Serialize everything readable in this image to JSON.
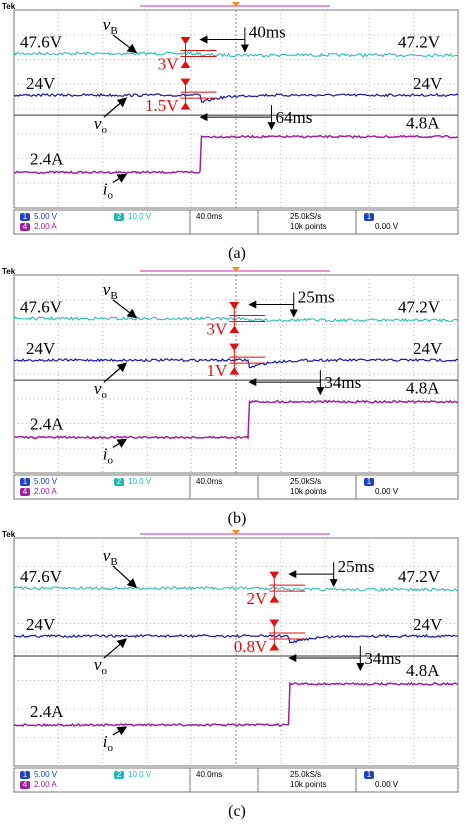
{
  "panels": [
    {
      "brand": "Tek",
      "vb_left": "47.6V",
      "vb_right": "47.2V",
      "vo_left": "24V",
      "vo_right": "24V",
      "io_left": "2.4A",
      "io_right": "4.8A",
      "vb_name": "v",
      "vb_sub": "B",
      "vo_name": "v",
      "vo_sub": "o",
      "io_name": "i",
      "io_sub": "o",
      "time_top": "40ms",
      "time_bottom": "64ms",
      "dv_top": "3V",
      "dv_bottom": "1.5V",
      "status": {
        "ch1_id": "1",
        "ch1": "5.00 V",
        "ch2_id": "2",
        "ch2": "10.0 V",
        "ch4_id": "4",
        "ch4": "2.00 A",
        "timebase": "40.0ms",
        "rate": "25.0kS/s",
        "points": "10k points",
        "trig_id": "1",
        "trig": "0.00 V"
      },
      "caption": "(a)"
    },
    {
      "brand": "Tek",
      "vb_left": "47.6V",
      "vb_right": "47.2V",
      "vo_left": "24V",
      "vo_right": "24V",
      "io_left": "2.4A",
      "io_right": "4.8A",
      "vb_name": "v",
      "vb_sub": "B",
      "vo_name": "v",
      "vo_sub": "o",
      "io_name": "i",
      "io_sub": "o",
      "time_top": "25ms",
      "time_bottom": "34ms",
      "dv_top": "3V",
      "dv_bottom": "1V",
      "status": {
        "ch1_id": "1",
        "ch1": "5.00 V",
        "ch2_id": "2",
        "ch2": "10.0 V",
        "ch4_id": "4",
        "ch4": "2.00 A",
        "timebase": "40.0ms",
        "rate": "25.0kS/s",
        "points": "10k points",
        "trig_id": "1",
        "trig": "0.00 V"
      },
      "caption": "(b)"
    },
    {
      "brand": "Tek",
      "vb_left": "47.6V",
      "vb_right": "47.2V",
      "vo_left": "24V",
      "vo_right": "24V",
      "io_left": "2.4A",
      "io_right": "4.8A",
      "vb_name": "v",
      "vb_sub": "B",
      "vo_name": "v",
      "vo_sub": "o",
      "io_name": "i",
      "io_sub": "o",
      "time_top": "25ms",
      "time_bottom": "34ms",
      "dv_top": "2V",
      "dv_bottom": "0.8V",
      "status": {
        "ch1_id": "1",
        "ch1": "5.00 V",
        "ch2_id": "2",
        "ch2": "10.0 V",
        "ch4_id": "4",
        "ch4": "2.00 A",
        "timebase": "40.0ms",
        "rate": "25.0kS/s",
        "points": "10k points",
        "trig_id": "1",
        "trig": "0.00 V"
      },
      "caption": "(c)"
    }
  ]
}
